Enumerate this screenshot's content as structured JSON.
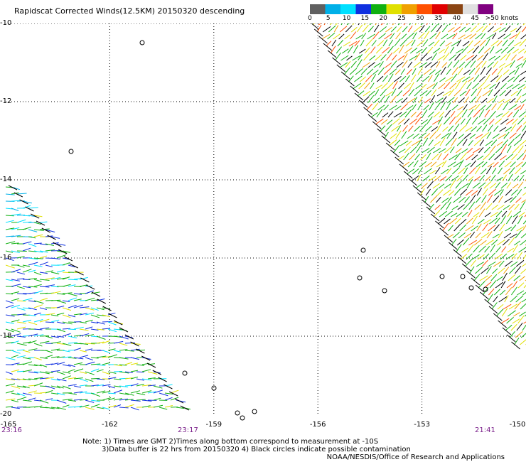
{
  "title": "Rapidscat Corrected Winds(12.5KM) 20150320 descending",
  "colorbar": {
    "colors": [
      "#606060",
      "#00b0e8",
      "#00e0ff",
      "#1030e0",
      "#10b010",
      "#e0e000",
      "#f0a000",
      "#ff5000",
      "#e00000",
      "#8b4513",
      "#e0e0e0",
      "#800080"
    ],
    "labels": [
      "0",
      "5",
      "10",
      "15",
      "20",
      "25",
      "30",
      "35",
      "40",
      "45",
      ">50 knots"
    ]
  },
  "map": {
    "lat_labels": [
      "-10",
      "-12",
      "-14",
      "-16",
      "-18",
      "-20"
    ],
    "lon_labels": [
      "-165",
      "-162",
      "-159",
      "-156",
      "-153",
      "-150"
    ],
    "lat_range": [
      -20,
      -10
    ],
    "lon_range": [
      -165,
      -150
    ],
    "grid": "dotted"
  },
  "time_labels": {
    "left": "23:16",
    "middle": "23:17",
    "right": "21:41"
  },
  "notes": {
    "line1": "Note: 1) Times are GMT 2)Times along bottom correspond to measurement at -10S",
    "line2": "3)Data buffer is 22 hrs from 20150320 4) Black circles indicate possible contamination",
    "credit": "NOAA/NESDIS/Office of Research and Applications"
  }
}
